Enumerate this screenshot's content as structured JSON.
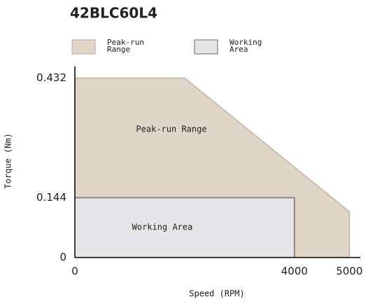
{
  "chart_data": {
    "type": "area",
    "title": "42BLC60L4",
    "x_label": "Speed (RPM)",
    "y_label": "Torque (Nm)",
    "xlim": [
      0,
      5200
    ],
    "xticks": [
      0,
      4000,
      5000
    ],
    "ylim": [
      0,
      0.46
    ],
    "yticks": [
      0,
      0.144,
      0.432
    ],
    "grid": false,
    "series": [
      {
        "name": "Peak-run Range",
        "color": "#e0d6c8",
        "stroke": "#cbbdab",
        "x": [
          0,
          2000,
          5000,
          5000
        ],
        "values": [
          0.432,
          0.432,
          0.11,
          0
        ]
      },
      {
        "name": "Working Area",
        "color": "#e6e6e8",
        "stroke": "#888888",
        "x": [
          0,
          4000,
          4000
        ],
        "values": [
          0.144,
          0.144,
          0
        ]
      }
    ]
  }
}
